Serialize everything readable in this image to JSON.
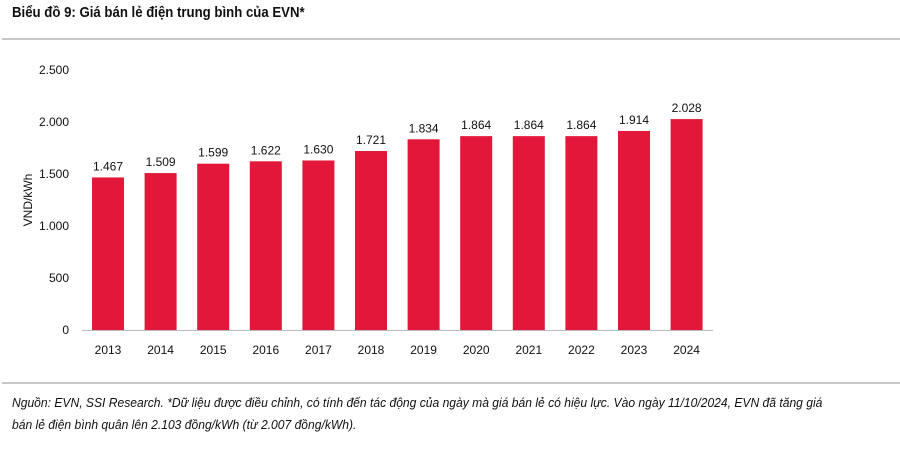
{
  "title": "Biểu đồ 9: Giá bán lẻ điện trung bình của EVN*",
  "note": "Nguồn: EVN, SSI Research. *Dữ liệu được điều chỉnh, có tính đến tác động của ngày mà giá bán lẻ có hiệu lực. Vào ngày 11/10/2024, EVN đã tăng giá bán lẻ điện bình quân lên 2.103 đồng/kWh (từ 2.007 đồng/kWh).",
  "chart_data": {
    "type": "bar",
    "title": "Biểu đồ 9: Giá bán lẻ điện trung bình của EVN*",
    "xlabel": "",
    "ylabel": "VND/kWh",
    "categories": [
      "2013",
      "2014",
      "2015",
      "2016",
      "2017",
      "2018",
      "2019",
      "2020",
      "2021",
      "2022",
      "2023",
      "2024"
    ],
    "values": [
      1467,
      1509,
      1599,
      1622,
      1630,
      1721,
      1834,
      1864,
      1864,
      1864,
      1914,
      2028
    ],
    "data_labels": [
      "1.467",
      "1.509",
      "1.599",
      "1.622",
      "1.630",
      "1.721",
      "1.834",
      "1.864",
      "1.864",
      "1.864",
      "1.914",
      "2.028"
    ],
    "ylim": [
      0,
      2500
    ],
    "yticks": [
      0,
      500,
      1000,
      1500,
      2000,
      2500
    ],
    "ytick_labels": [
      "0",
      "500",
      "1.000",
      "1.500",
      "2.000",
      "2.500"
    ],
    "grid": false,
    "legend": "none",
    "bar_color": "#e2173a"
  }
}
